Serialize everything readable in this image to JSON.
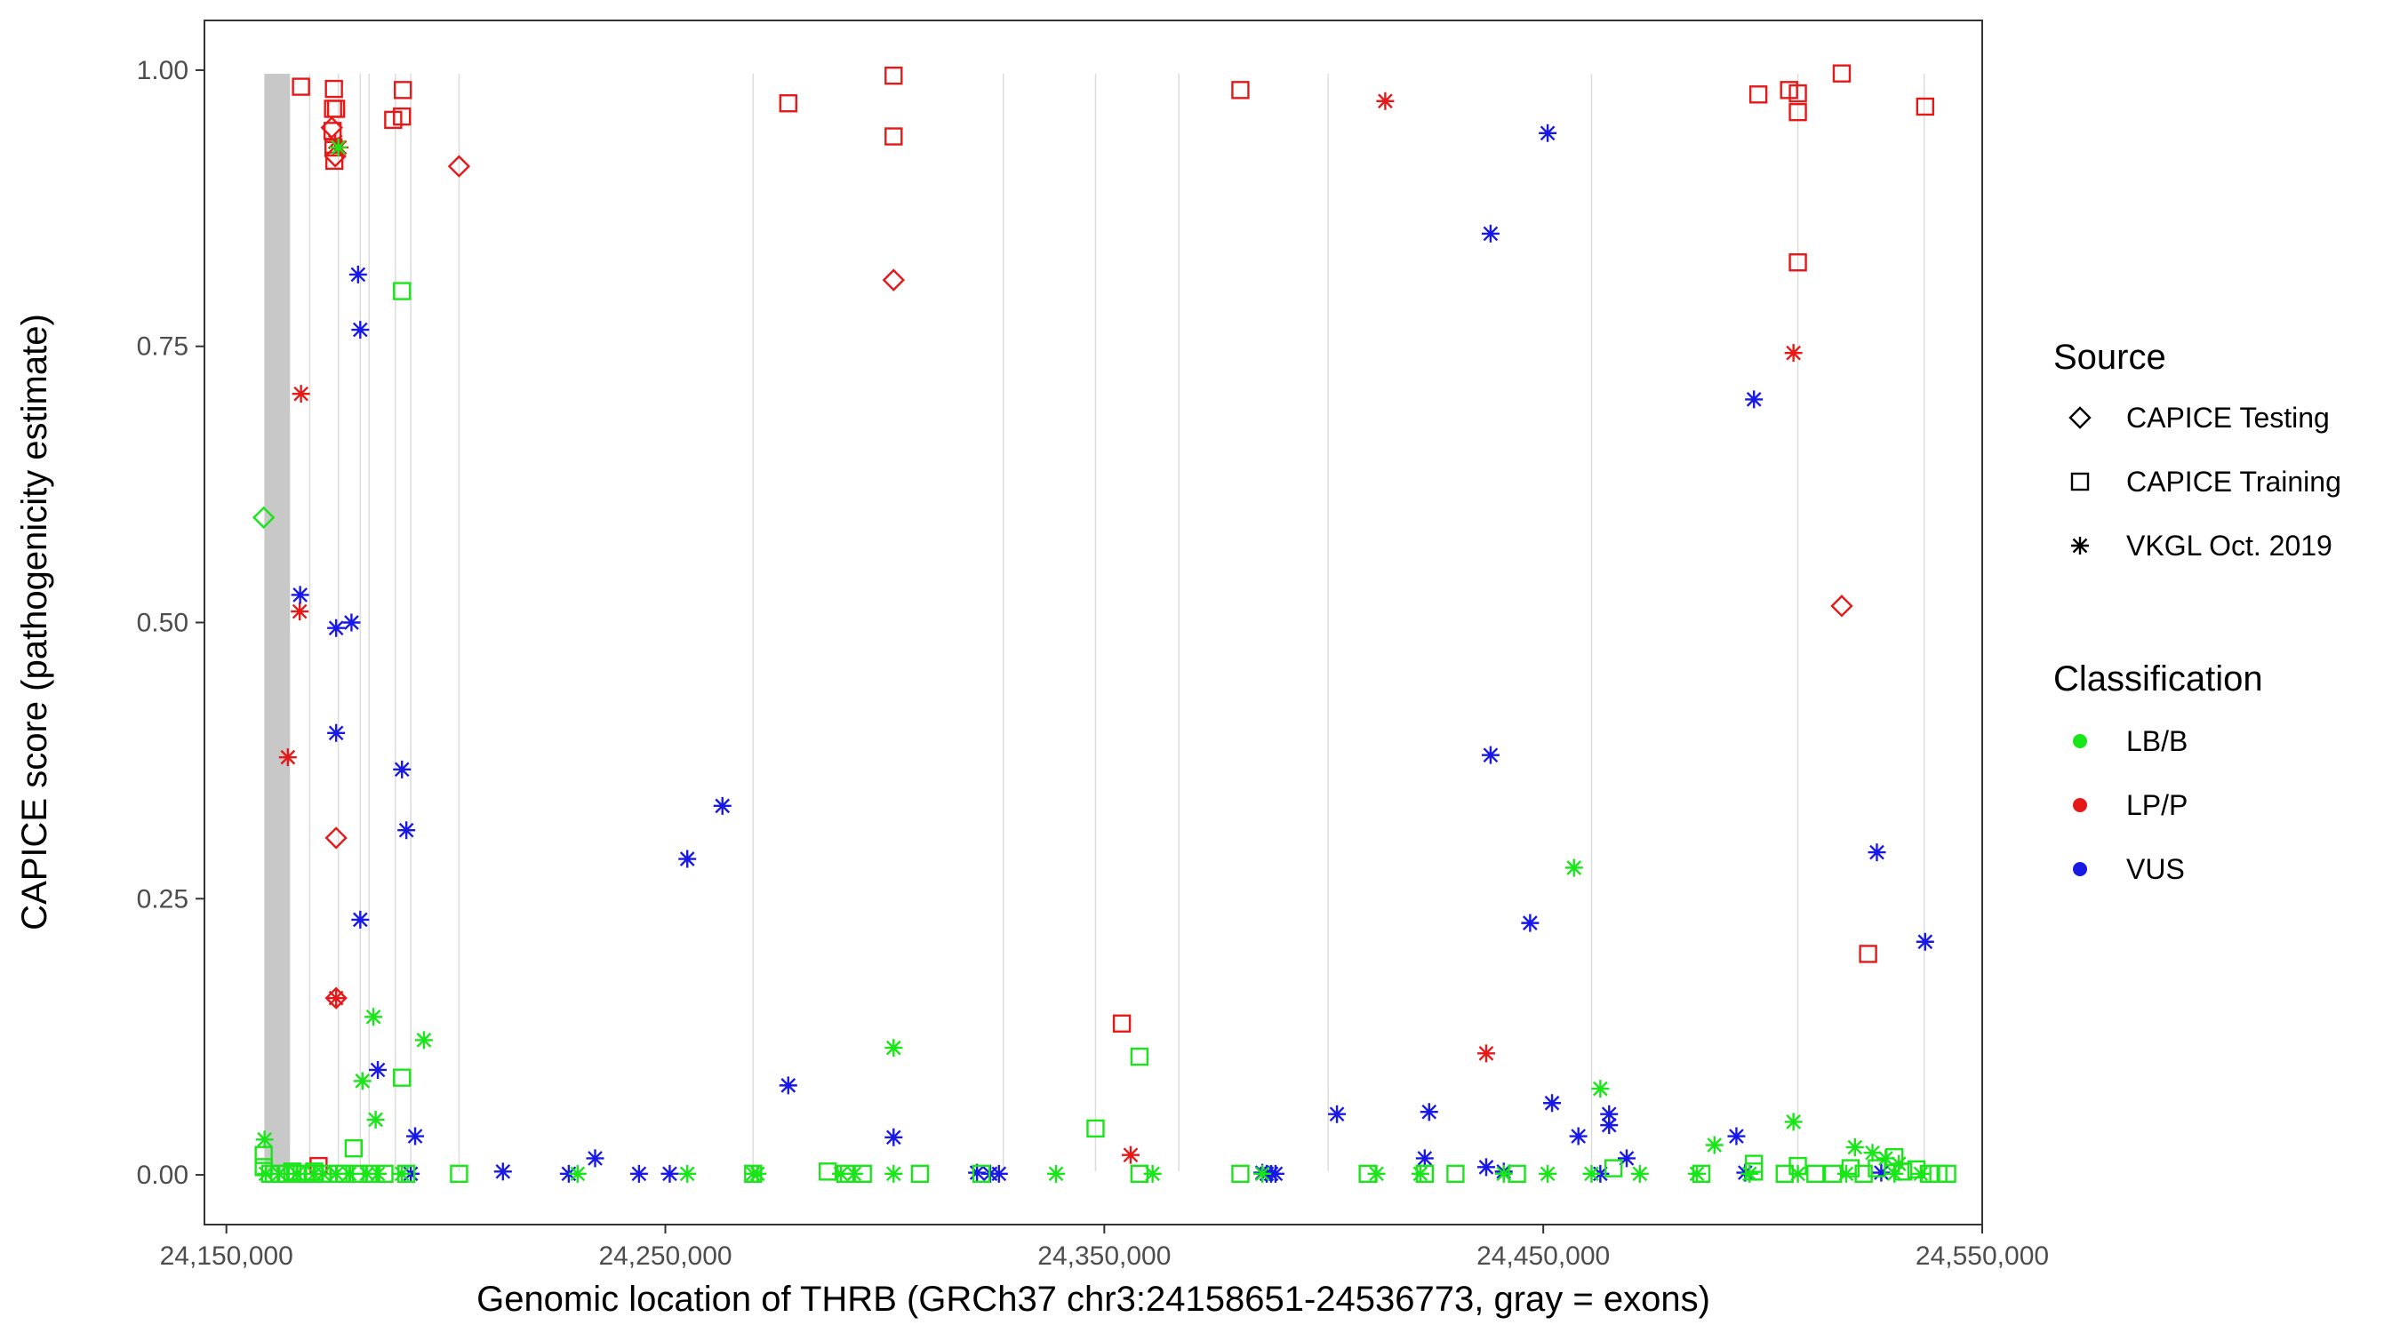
{
  "chart_data": {
    "type": "scatter",
    "title": "",
    "xlabel": "Genomic location of THRB (GRCh37 chr3:24158651-24536773, gray = exons)",
    "ylabel": "CAPICE score (pathogenicity estimate)",
    "xlim": [
      24145000,
      24550000
    ],
    "ylim": [
      -0.045,
      1.045
    ],
    "x_ticks": [
      24150000,
      24250000,
      24350000,
      24450000,
      24550000
    ],
    "x_tick_labels": [
      "24,150,000",
      "24,250,000",
      "24,350,000",
      "24,450,000",
      "24,550,000"
    ],
    "y_ticks": [
      0,
      0.25,
      0.5,
      0.75,
      1.0
    ],
    "y_tick_labels": [
      "0.00",
      "0.25",
      "0.50",
      "0.75",
      "1.00"
    ],
    "exon_region": [
      24158651,
      24164500
    ],
    "exon_lines": [
      24169000,
      24175500,
      24180500,
      24182500,
      24188500,
      24192000,
      24203000,
      24270000,
      24327000,
      24348000,
      24367000,
      24401000,
      24461000,
      24508000,
      24536773
    ],
    "legend": {
      "source_title": "Source",
      "source_items": [
        {
          "shape": "diamond",
          "label": "CAPICE Testing"
        },
        {
          "shape": "square",
          "label": "CAPICE Training"
        },
        {
          "shape": "asterisk",
          "label": "VKGL Oct. 2019"
        }
      ],
      "class_title": "Classification",
      "class_items": [
        {
          "key": "LB/B",
          "label": "LB/B",
          "color": "#19e619"
        },
        {
          "key": "LP/P",
          "label": "LP/P",
          "color": "#e61919"
        },
        {
          "key": "VUS",
          "label": "VUS",
          "color": "#1919e6"
        }
      ]
    },
    "series": [
      {
        "name": "CAPICE Training LP/P",
        "shape": "square",
        "class": "LP/P",
        "points": [
          [
            24167000,
            0.985
          ],
          [
            24174300,
            0.965
          ],
          [
            24175000,
            0.965
          ],
          [
            24174500,
            0.983
          ],
          [
            24174600,
            0.918
          ],
          [
            24174200,
            0.945
          ],
          [
            24174400,
            0.93
          ],
          [
            24188000,
            0.955
          ],
          [
            24190000,
            0.958
          ],
          [
            24190200,
            0.982
          ],
          [
            24278000,
            0.97
          ],
          [
            24302000,
            0.995
          ],
          [
            24302000,
            0.94
          ],
          [
            24381000,
            0.982
          ],
          [
            24499000,
            0.978
          ],
          [
            24506000,
            0.982
          ],
          [
            24508000,
            0.979
          ],
          [
            24508000,
            0.962
          ],
          [
            24518000,
            0.997
          ],
          [
            24537000,
            0.967
          ],
          [
            24508000,
            0.826
          ],
          [
            24354000,
            0.137
          ],
          [
            24524000,
            0.2
          ],
          [
            24171000,
            0.008
          ]
        ]
      },
      {
        "name": "CAPICE Testing LP/P",
        "shape": "diamond",
        "class": "LP/P",
        "points": [
          [
            24174000,
            0.948
          ],
          [
            24174800,
            0.922
          ],
          [
            24203000,
            0.913
          ],
          [
            24302000,
            0.81
          ],
          [
            24518000,
            0.515
          ],
          [
            24175000,
            0.305
          ],
          [
            24175000,
            0.16
          ]
        ]
      },
      {
        "name": "CAPICE Testing LB/B",
        "shape": "diamond",
        "class": "LB/B",
        "points": [
          [
            24158500,
            0.595
          ]
        ]
      },
      {
        "name": "VKGL LP/P",
        "shape": "asterisk",
        "class": "LP/P",
        "points": [
          [
            24174800,
            0.935
          ],
          [
            24175800,
            0.93
          ],
          [
            24167000,
            0.707
          ],
          [
            24166700,
            0.51
          ],
          [
            24164000,
            0.378
          ],
          [
            24175000,
            0.16
          ],
          [
            24414000,
            0.972
          ],
          [
            24507000,
            0.744
          ],
          [
            24437000,
            0.11
          ],
          [
            24356000,
            0.018
          ]
        ]
      },
      {
        "name": "VKGL VUS",
        "shape": "asterisk",
        "class": "VUS",
        "points": [
          [
            24180000,
            0.815
          ],
          [
            24180500,
            0.765
          ],
          [
            24166800,
            0.525
          ],
          [
            24175000,
            0.495
          ],
          [
            24178500,
            0.5
          ],
          [
            24175000,
            0.4
          ],
          [
            24190000,
            0.367
          ],
          [
            24191000,
            0.312
          ],
          [
            24180500,
            0.231
          ],
          [
            24184500,
            0.095
          ],
          [
            24193000,
            0.035
          ],
          [
            24192000,
            0.001
          ],
          [
            24263000,
            0.334
          ],
          [
            24255000,
            0.286
          ],
          [
            24278000,
            0.081
          ],
          [
            24302000,
            0.034
          ],
          [
            24234000,
            0.015
          ],
          [
            24438000,
            0.38
          ],
          [
            24438000,
            0.852
          ],
          [
            24451000,
            0.943
          ],
          [
            24498000,
            0.702
          ],
          [
            24447000,
            0.228
          ],
          [
            24526000,
            0.292
          ],
          [
            24537000,
            0.211
          ],
          [
            24403000,
            0.055
          ],
          [
            24424000,
            0.057
          ],
          [
            24452000,
            0.065
          ],
          [
            24465000,
            0.055
          ],
          [
            24465000,
            0.045
          ],
          [
            24458000,
            0.035
          ],
          [
            24494000,
            0.035
          ],
          [
            24469000,
            0.015
          ],
          [
            24423000,
            0.015
          ],
          [
            24437000,
            0.007
          ],
          [
            24441000,
            0.003
          ],
          [
            24213000,
            0.003
          ],
          [
            24228000,
            0.001
          ],
          [
            24251000,
            0.001
          ],
          [
            24244000,
            0.001
          ],
          [
            24321000,
            0.002
          ],
          [
            24324000,
            0.001
          ],
          [
            24326000,
            0.001
          ],
          [
            24386000,
            0.002
          ],
          [
            24387000,
            0.001
          ],
          [
            24388000,
            0.001
          ],
          [
            24389000,
            0.001
          ],
          [
            24463000,
            0.001
          ],
          [
            24496000,
            0.002
          ],
          [
            24527000,
            0.002
          ]
        ]
      },
      {
        "name": "VKGL LB/B",
        "shape": "asterisk",
        "class": "LB/B",
        "points": [
          [
            24175500,
            0.93
          ],
          [
            24183500,
            0.143
          ],
          [
            24195000,
            0.122
          ],
          [
            24181000,
            0.085
          ],
          [
            24184000,
            0.05
          ],
          [
            24158700,
            0.032
          ],
          [
            24302000,
            0.115
          ],
          [
            24457000,
            0.278
          ],
          [
            24463000,
            0.078
          ],
          [
            24489000,
            0.027
          ],
          [
            24507000,
            0.048
          ],
          [
            24521000,
            0.025
          ],
          [
            24525000,
            0.02
          ],
          [
            24528000,
            0.015
          ],
          [
            24531000,
            0.01
          ],
          [
            24159000,
            0.001
          ],
          [
            24162000,
            0.001
          ],
          [
            24166000,
            0.001
          ],
          [
            24170000,
            0.001
          ],
          [
            24172000,
            0.001
          ],
          [
            24175000,
            0.001
          ],
          [
            24178000,
            0.001
          ],
          [
            24182000,
            0.001
          ],
          [
            24184500,
            0.001
          ],
          [
            24190000,
            0.001
          ],
          [
            24230000,
            0.001
          ],
          [
            24255000,
            0.001
          ],
          [
            24270000,
            0.001
          ],
          [
            24271000,
            0.001
          ],
          [
            24290000,
            0.001
          ],
          [
            24293000,
            0.001
          ],
          [
            24302000,
            0.001
          ],
          [
            24339000,
            0.001
          ],
          [
            24361000,
            0.001
          ],
          [
            24386000,
            0.001
          ],
          [
            24412000,
            0.001
          ],
          [
            24422000,
            0.001
          ],
          [
            24441000,
            0.001
          ],
          [
            24451000,
            0.001
          ],
          [
            24461000,
            0.001
          ],
          [
            24472000,
            0.001
          ],
          [
            24485000,
            0.001
          ],
          [
            24497000,
            0.001
          ],
          [
            24508000,
            0.001
          ],
          [
            24519000,
            0.001
          ],
          [
            24530000,
            0.001
          ],
          [
            24536000,
            0.001
          ]
        ]
      },
      {
        "name": "CAPICE Training LB/B",
        "shape": "square",
        "class": "LB/B",
        "points": [
          [
            24190000,
            0.8
          ],
          [
            24190000,
            0.088
          ],
          [
            24179000,
            0.024
          ],
          [
            24348000,
            0.042
          ],
          [
            24358000,
            0.107
          ],
          [
            24158500,
            0.018
          ],
          [
            24158500,
            0.007
          ],
          [
            24160000,
            0.001
          ],
          [
            24162000,
            0.001
          ],
          [
            24163500,
            0.001
          ],
          [
            24165000,
            0.003
          ],
          [
            24166000,
            0.001
          ],
          [
            24168000,
            0.001
          ],
          [
            24170000,
            0.003
          ],
          [
            24172000,
            0.001
          ],
          [
            24175500,
            0.001
          ],
          [
            24177000,
            0.001
          ],
          [
            24180000,
            0.001
          ],
          [
            24183000,
            0.001
          ],
          [
            24186000,
            0.001
          ],
          [
            24191000,
            0.001
          ],
          [
            24203000,
            0.001
          ],
          [
            24270000,
            0.001
          ],
          [
            24287000,
            0.003
          ],
          [
            24291000,
            0.001
          ],
          [
            24295000,
            0.001
          ],
          [
            24308000,
            0.001
          ],
          [
            24322000,
            0.001
          ],
          [
            24358000,
            0.001
          ],
          [
            24381000,
            0.001
          ],
          [
            24410000,
            0.001
          ],
          [
            24423000,
            0.001
          ],
          [
            24430000,
            0.001
          ],
          [
            24444000,
            0.001
          ],
          [
            24466000,
            0.006
          ],
          [
            24486000,
            0.001
          ],
          [
            24498000,
            0.01
          ],
          [
            24498000,
            0.003
          ],
          [
            24505000,
            0.001
          ],
          [
            24508000,
            0.008
          ],
          [
            24512000,
            0.001
          ],
          [
            24516000,
            0.001
          ],
          [
            24520000,
            0.006
          ],
          [
            24523000,
            0.001
          ],
          [
            24526000,
            0.006
          ],
          [
            24530000,
            0.016
          ],
          [
            24532000,
            0.003
          ],
          [
            24535000,
            0.005
          ],
          [
            24538000,
            0.001
          ],
          [
            24540000,
            0.001
          ],
          [
            24542000,
            0.001
          ]
        ]
      }
    ]
  }
}
